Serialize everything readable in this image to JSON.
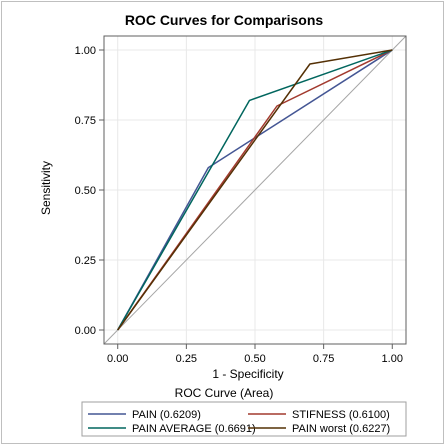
{
  "chart_data": {
    "type": "line",
    "title": "ROC Curves for Comparisons",
    "xlabel": "1 - Specificity",
    "ylabel": "Sensitivity",
    "xlim": [
      -0.05,
      1.05
    ],
    "ylim": [
      -0.05,
      1.05
    ],
    "xticks": [
      "0.00",
      "0.25",
      "0.50",
      "0.75",
      "1.00"
    ],
    "yticks": [
      "0.00",
      "0.25",
      "0.50",
      "0.75",
      "1.00"
    ],
    "grid": true,
    "legend_position": "bottom",
    "legend_title": "ROC Curve (Area)",
    "reference_line": {
      "x": [
        0,
        1
      ],
      "y": [
        0,
        1
      ],
      "color": "#a6a6a6"
    },
    "series": [
      {
        "name": "PAIN  (0.6209)",
        "color": "#445694",
        "x": [
          0,
          0.33,
          1
        ],
        "y": [
          0,
          0.58,
          1
        ]
      },
      {
        "name": "STIFNESS  (0.6100)",
        "color": "#a23a2e",
        "x": [
          0,
          0.58,
          1
        ],
        "y": [
          0,
          0.8,
          1
        ]
      },
      {
        "name": "PAIN AVERAGE  (0.6691)",
        "color": "#01665e",
        "x": [
          0,
          0.48,
          1
        ],
        "y": [
          0,
          0.82,
          1
        ]
      },
      {
        "name": "PAIN worst  (0.6227)",
        "color": "#543005",
        "x": [
          0,
          0.7,
          1
        ],
        "y": [
          0,
          0.95,
          1
        ]
      }
    ]
  }
}
